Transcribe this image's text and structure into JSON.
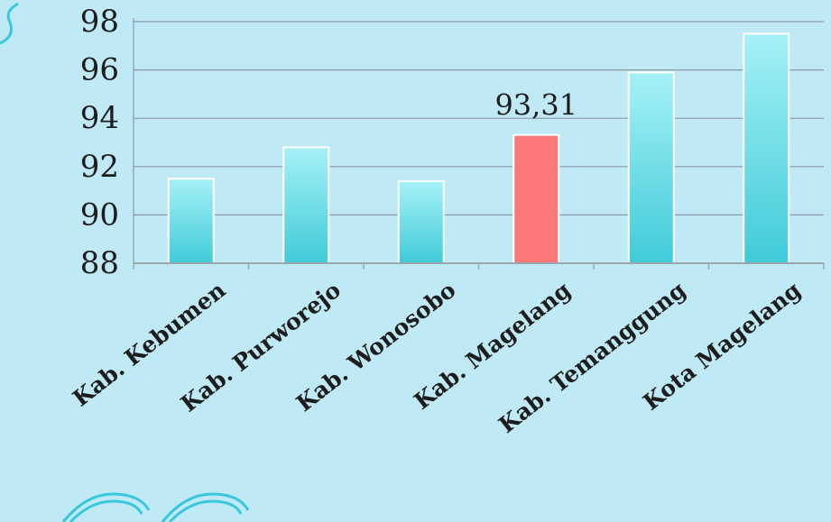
{
  "chart_data": {
    "type": "bar",
    "categories": [
      "Kab. Kebumen",
      "Kab. Purworejo",
      "Kab. Wonosobo",
      "Kab. Magelang",
      "Kab. Temanggung",
      "Kota Magelang"
    ],
    "values": [
      91.5,
      92.8,
      91.4,
      93.31,
      95.9,
      97.5
    ],
    "highlight_index": 3,
    "data_labels": [
      "",
      "",
      "",
      "93,31",
      "",
      ""
    ],
    "yticks": [
      "88",
      "90",
      "92",
      "94",
      "96",
      "98"
    ],
    "ylim": [
      88,
      98
    ],
    "grid": true,
    "colors": {
      "background": "#bfe9f5",
      "bar": "#40cbd8",
      "bar_light": "#a6f1f7",
      "highlight": "#fb7878",
      "grid": "#8a9aa3",
      "axis": "#9aa6ad",
      "text": "#1d1d1d",
      "decoration": "#39c7dc"
    }
  }
}
